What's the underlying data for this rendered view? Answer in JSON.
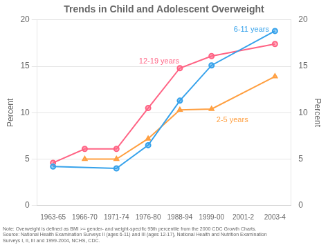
{
  "chart_data": {
    "type": "line",
    "title": "Trends in Child and Adolescent Overweight",
    "categories": [
      "1963-65",
      "1966-70",
      "1971-74",
      "1976-80",
      "1988-94",
      "1999-00",
      "2001-2",
      "2003-4"
    ],
    "series": [
      {
        "name": "6-11 years",
        "marker": "circle",
        "values": [
          4.2,
          null,
          4.0,
          6.5,
          11.3,
          15.1,
          null,
          18.8
        ]
      },
      {
        "name": "12-19 years",
        "marker": "circle",
        "values": [
          4.6,
          6.1,
          6.1,
          10.5,
          14.8,
          16.1,
          null,
          17.4
        ]
      },
      {
        "name": "2-5 years",
        "marker": "triangle",
        "values": [
          null,
          5.0,
          5.0,
          7.2,
          10.3,
          10.4,
          null,
          13.9
        ]
      }
    ],
    "ylabel": "Percent",
    "y2label": "Percent",
    "ylim": [
      0,
      20
    ],
    "yticks": [
      0,
      5,
      10,
      15,
      20
    ],
    "y2lim": [
      0,
      20
    ],
    "y2ticks": [
      0,
      5,
      10,
      15,
      20
    ],
    "grid": "y",
    "note": "Note: Overweight is defined as BMI >= gender- and weight-specific 95th percentile from the 2000 CDC Growth Charts.\nSource: National Health Examination Surveys II (ages 6-11) and III (ages 12-17), National Health and Nutrition Examination\nSurveys I, II, III and 1999-2004, NCHS, CDC."
  }
}
